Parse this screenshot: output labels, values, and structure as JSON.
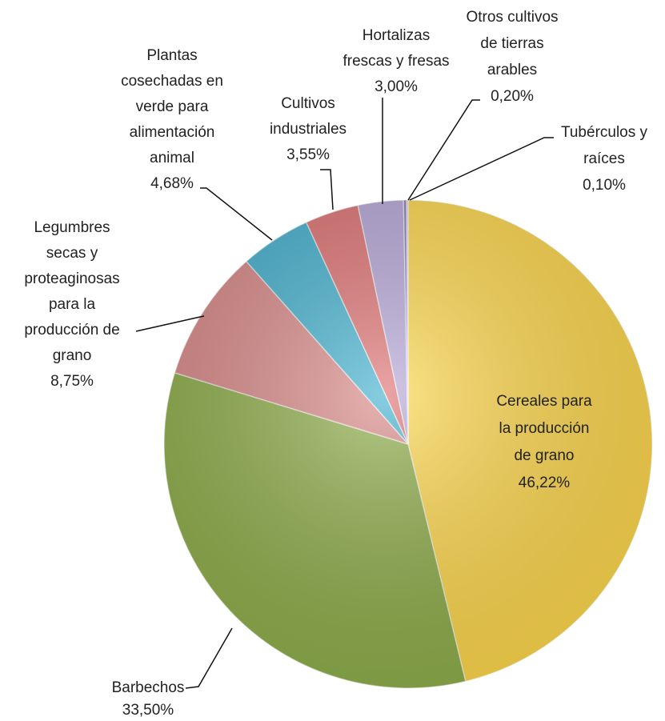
{
  "chart_data": {
    "type": "pie",
    "categories": [
      "Cereales para\nla producción\nde grano",
      "Barbechos",
      "Legumbres\nsecas y\nproteaginosas\npara la\nproducción de\ngrano",
      "Plantas\ncosechadas en\nverde para\nalimentación\nanimal",
      "Cultivos\nindustriales",
      "Hortalizas\nfrescas y fresas",
      "Otros cultivos\nde tierras\narables",
      "Tubérculos y\nraíces"
    ],
    "values": [
      46.22,
      33.5,
      8.75,
      4.68,
      3.55,
      3.0,
      0.2,
      0.1
    ],
    "value_labels": [
      "46,22%",
      "33,50%",
      "8,75%",
      "4,68%",
      "3,55%",
      "3,00%",
      "0,20%",
      "0,10%"
    ],
    "colors": [
      "#ffd84d",
      "#8fae4a",
      "#d98a88",
      "#45b2cf",
      "#e07474",
      "#b7a8d8",
      "#8f7bb8",
      "#c9c9c9"
    ]
  }
}
